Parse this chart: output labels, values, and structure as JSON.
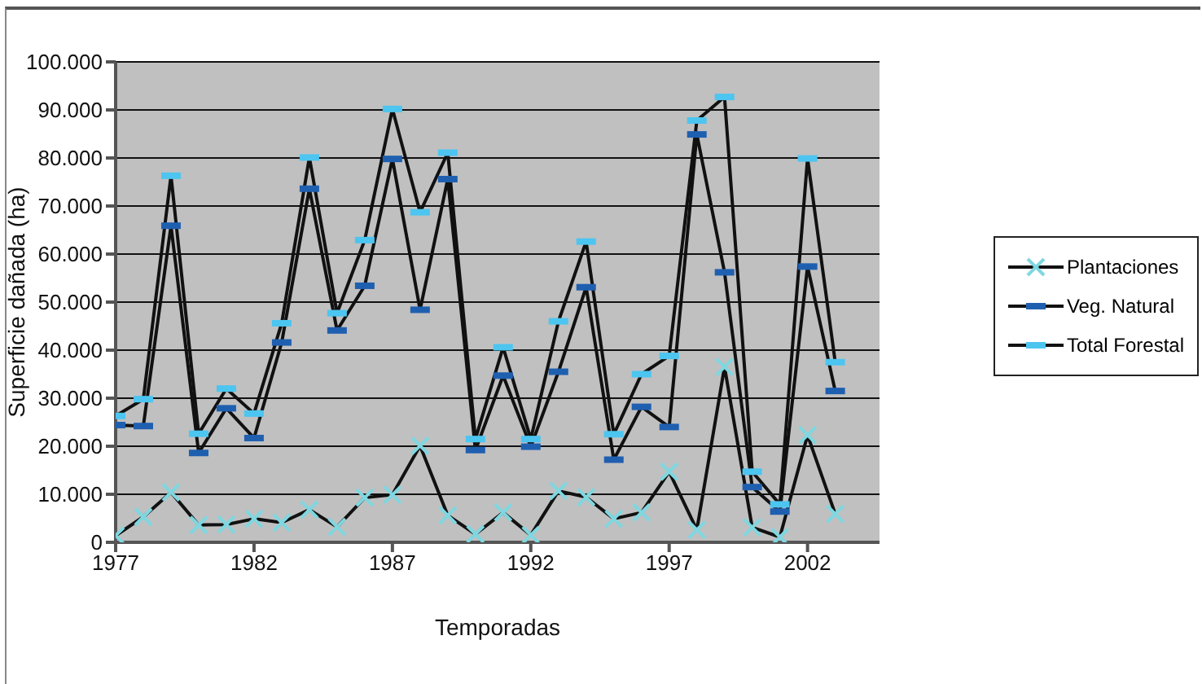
{
  "chart_data": {
    "type": "line",
    "xlabel": "Temporadas",
    "ylabel": "Superficie dañada (ha)",
    "x": [
      1977,
      1978,
      1979,
      1980,
      1981,
      1982,
      1983,
      1984,
      1985,
      1986,
      1987,
      1988,
      1989,
      1990,
      1991,
      1992,
      1993,
      1994,
      1995,
      1996,
      1997,
      1998,
      1999,
      2000,
      2001,
      2002,
      2003
    ],
    "xlim": [
      1977,
      2004.6
    ],
    "xticks": [
      1977,
      1982,
      1987,
      1992,
      1997,
      2002
    ],
    "ylim": [
      0,
      100000
    ],
    "yticks": [
      0,
      {
        "value": 10000,
        "label": "10.000"
      },
      {
        "value": 20000,
        "label": "20.000"
      },
      {
        "value": 30000,
        "label": "30.000"
      },
      {
        "value": 40000,
        "label": "40.000"
      },
      {
        "value": 50000,
        "label": "50.000"
      },
      {
        "value": 60000,
        "label": "60.000"
      },
      {
        "value": 70000,
        "label": "70.000"
      },
      {
        "value": 80000,
        "label": "80.000"
      },
      {
        "value": 90000,
        "label": "90.000"
      },
      {
        "value": 100000,
        "label": "100.000"
      }
    ],
    "grid": "y",
    "legend": "right",
    "line_style": "solid",
    "series": [
      {
        "name": "Plantaciones",
        "color": "#7fd7e0",
        "marker": "cross",
        "values": [
          1400,
          5300,
          10400,
          3600,
          3700,
          4900,
          4100,
          6800,
          3200,
          9300,
          9900,
          20100,
          5600,
          1700,
          6200,
          1500,
          10700,
          9400,
          4900,
          6200,
          14700,
          2600,
          36500,
          3100,
          1100,
          22300,
          5900
        ]
      },
      {
        "name": "Veg. Natural",
        "color": "#1f5fb0",
        "marker": "square",
        "values": [
          24400,
          24200,
          65900,
          18600,
          27900,
          21700,
          41600,
          73600,
          44100,
          53400,
          79800,
          48400,
          75600,
          19200,
          34700,
          19900,
          35500,
          53100,
          17200,
          28200,
          24000,
          84900,
          56200,
          11500,
          6400,
          57400,
          31500
        ]
      },
      {
        "name": "Total Forestal",
        "color": "#4cc5f0",
        "marker": "square",
        "values": [
          26300,
          29800,
          76300,
          22600,
          32000,
          26800,
          45600,
          80100,
          47700,
          62900,
          90200,
          68700,
          81100,
          21500,
          40600,
          21500,
          46000,
          62600,
          22500,
          35000,
          38800,
          87800,
          92700,
          14700,
          7900,
          79900,
          37500
        ]
      }
    ]
  }
}
